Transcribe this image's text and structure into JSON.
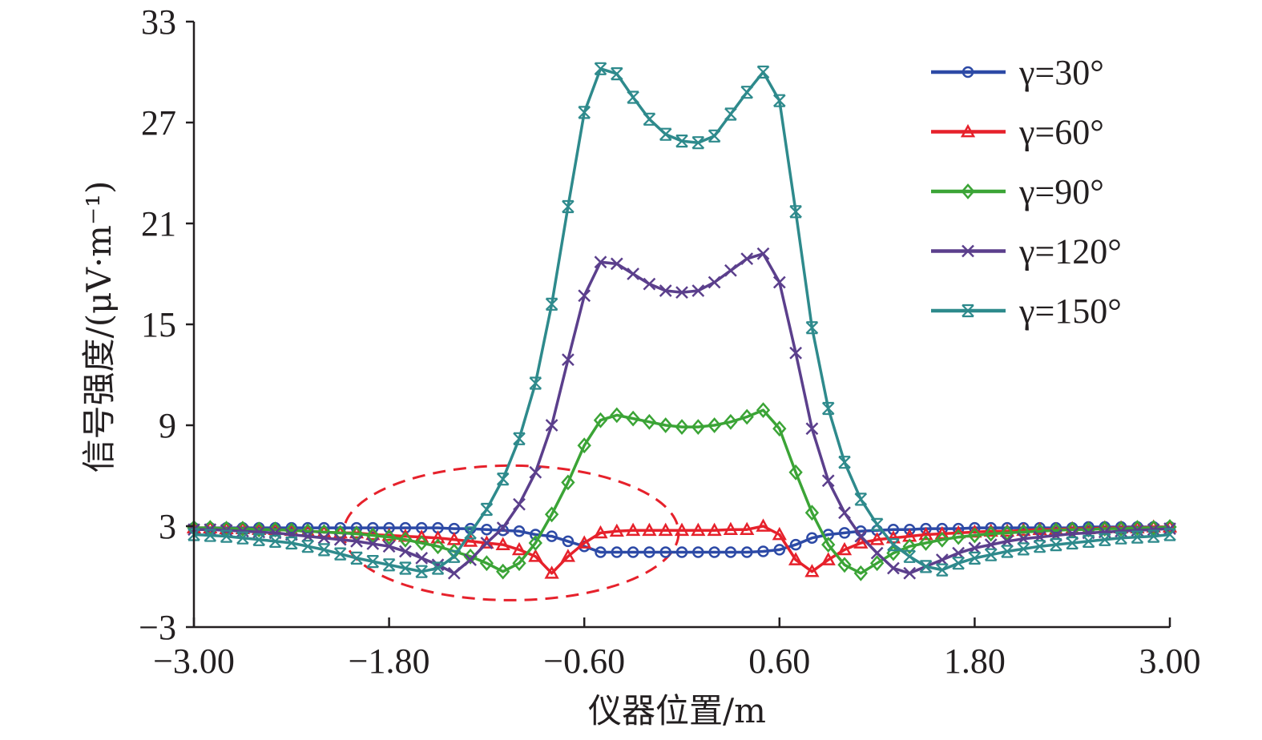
{
  "chart_data": {
    "type": "line",
    "title": "",
    "xlabel": "仪器位置/m",
    "ylabel": "信号强度/(μV·m⁻¹)",
    "xlim": [
      -3,
      3
    ],
    "ylim": [
      -3,
      33
    ],
    "xticks": [
      "−3.00",
      "−1.80",
      "−0.60",
      "0.60",
      "1.80",
      "3.00"
    ],
    "xtick_values": [
      -3,
      -1.8,
      -0.6,
      0.6,
      1.8,
      3
    ],
    "yticks": [
      "33",
      "27",
      "21",
      "15",
      "9",
      "3",
      "−3"
    ],
    "ytick_values": [
      33,
      27,
      21,
      15,
      9,
      3,
      -3
    ],
    "grid": false,
    "legend_position": "top-right",
    "x": [
      -3.0,
      -2.9,
      -2.8,
      -2.7,
      -2.6,
      -2.5,
      -2.4,
      -2.3,
      -2.2,
      -2.1,
      -2.0,
      -1.9,
      -1.8,
      -1.7,
      -1.6,
      -1.5,
      -1.4,
      -1.3,
      -1.2,
      -1.1,
      -1.0,
      -0.9,
      -0.8,
      -0.7,
      -0.6,
      -0.5,
      -0.4,
      -0.3,
      -0.2,
      -0.1,
      0.0,
      0.1,
      0.2,
      0.3,
      0.4,
      0.5,
      0.6,
      0.7,
      0.8,
      0.9,
      1.0,
      1.1,
      1.2,
      1.3,
      1.4,
      1.5,
      1.6,
      1.7,
      1.8,
      1.9,
      2.0,
      2.1,
      2.2,
      2.3,
      2.4,
      2.5,
      2.6,
      2.7,
      2.8,
      2.9,
      3.0
    ],
    "series": [
      {
        "name": "γ=30°",
        "color": "#2d4aa6",
        "marker": "circle",
        "values": [
          2.9,
          2.9,
          2.9,
          2.9,
          2.9,
          2.9,
          2.9,
          2.9,
          2.9,
          2.9,
          2.9,
          2.9,
          2.9,
          2.9,
          2.9,
          2.9,
          2.85,
          2.85,
          2.8,
          2.75,
          2.7,
          2.5,
          2.4,
          2.1,
          1.8,
          1.45,
          1.45,
          1.45,
          1.45,
          1.45,
          1.45,
          1.45,
          1.45,
          1.45,
          1.45,
          1.5,
          1.6,
          1.9,
          2.3,
          2.5,
          2.6,
          2.7,
          2.75,
          2.8,
          2.8,
          2.85,
          2.85,
          2.85,
          2.9,
          2.9,
          2.9,
          2.9,
          2.9,
          2.9,
          2.9,
          2.95,
          2.95,
          2.95,
          2.95,
          2.95,
          2.95
        ]
      },
      {
        "name": "γ=60°",
        "color": "#e6212b",
        "marker": "triangle",
        "values": [
          2.9,
          2.9,
          2.85,
          2.85,
          2.8,
          2.8,
          2.75,
          2.7,
          2.65,
          2.6,
          2.6,
          2.5,
          2.45,
          2.4,
          2.35,
          2.3,
          2.2,
          2.1,
          2.0,
          1.9,
          1.6,
          1.2,
          0.2,
          1.2,
          2.0,
          2.6,
          2.7,
          2.75,
          2.75,
          2.75,
          2.75,
          2.75,
          2.75,
          2.8,
          2.8,
          3.0,
          2.5,
          1.0,
          0.3,
          1.0,
          1.6,
          2.0,
          2.2,
          2.3,
          2.4,
          2.5,
          2.55,
          2.6,
          2.65,
          2.7,
          2.7,
          2.75,
          2.8,
          2.8,
          2.85,
          2.85,
          2.9,
          2.9,
          2.9,
          2.95,
          2.95
        ]
      },
      {
        "name": "γ=90°",
        "color": "#3ba436",
        "marker": "diamond",
        "values": [
          2.9,
          2.9,
          2.85,
          2.85,
          2.8,
          2.8,
          2.75,
          2.7,
          2.65,
          2.6,
          2.55,
          2.45,
          2.35,
          2.2,
          2.0,
          1.8,
          1.5,
          1.2,
          0.8,
          0.3,
          0.8,
          2.0,
          3.7,
          5.6,
          7.8,
          9.3,
          9.6,
          9.4,
          9.2,
          9.0,
          8.9,
          8.9,
          9.0,
          9.2,
          9.5,
          9.9,
          8.8,
          6.2,
          3.8,
          1.9,
          0.7,
          0.2,
          0.8,
          1.4,
          1.8,
          2.0,
          2.2,
          2.35,
          2.45,
          2.55,
          2.6,
          2.65,
          2.7,
          2.75,
          2.8,
          2.8,
          2.85,
          2.85,
          2.9,
          2.9,
          2.95
        ]
      },
      {
        "name": "γ=120°",
        "color": "#5b3f8c",
        "marker": "x",
        "values": [
          2.8,
          2.8,
          2.75,
          2.7,
          2.65,
          2.6,
          2.5,
          2.4,
          2.3,
          2.2,
          2.1,
          1.95,
          1.8,
          1.5,
          1.1,
          0.7,
          0.2,
          1.0,
          2.0,
          2.9,
          4.3,
          6.2,
          9.0,
          12.9,
          16.7,
          18.7,
          18.6,
          18.0,
          17.4,
          17.0,
          16.9,
          17.0,
          17.5,
          18.2,
          18.9,
          19.2,
          17.5,
          13.3,
          8.8,
          5.7,
          3.8,
          2.4,
          1.4,
          0.5,
          0.2,
          0.6,
          1.0,
          1.4,
          1.7,
          1.9,
          2.1,
          2.25,
          2.35,
          2.45,
          2.55,
          2.6,
          2.65,
          2.7,
          2.75,
          2.8,
          2.85
        ]
      },
      {
        "name": "γ=150°",
        "color": "#2e8a8c",
        "marker": "asterisk",
        "values": [
          2.5,
          2.45,
          2.4,
          2.3,
          2.2,
          2.1,
          2.0,
          1.8,
          1.6,
          1.35,
          1.1,
          0.9,
          0.7,
          0.5,
          0.3,
          0.5,
          1.2,
          2.6,
          4.0,
          5.8,
          8.2,
          11.5,
          16.2,
          22.0,
          27.6,
          30.2,
          29.9,
          28.5,
          27.2,
          26.3,
          25.9,
          25.8,
          26.2,
          27.5,
          28.8,
          30.0,
          28.3,
          21.7,
          14.8,
          10.0,
          6.8,
          4.6,
          3.1,
          1.9,
          1.2,
          0.6,
          0.4,
          0.8,
          1.1,
          1.3,
          1.5,
          1.65,
          1.8,
          1.9,
          2.0,
          2.1,
          2.2,
          2.3,
          2.35,
          2.4,
          2.5
        ]
      }
    ],
    "annotations": [
      {
        "type": "dashed-ellipse",
        "color": "#e6212b",
        "x_range": [
          -2.08,
          -0.02
        ],
        "y_range": [
          -1.4,
          6.6
        ]
      }
    ]
  }
}
